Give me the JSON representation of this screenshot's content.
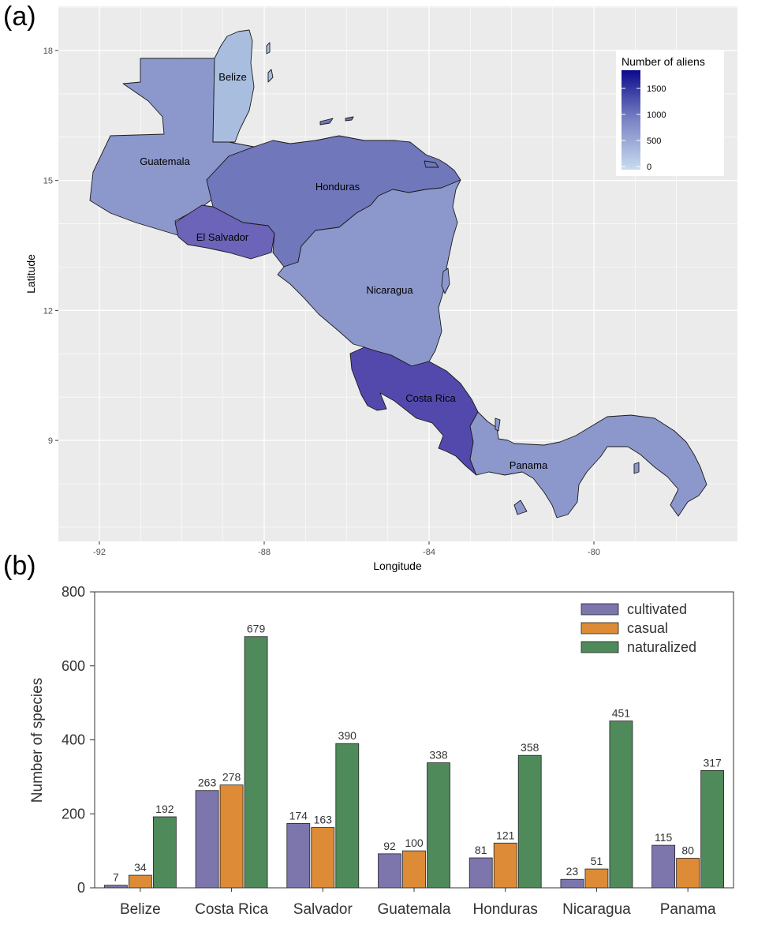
{
  "panel_a": {
    "label": "(a)",
    "xlabel": "Longitude",
    "ylabel": "Latitude",
    "x_ticks": [
      "-92",
      "-88",
      "-84",
      "-80"
    ],
    "y_ticks": [
      "18",
      "15",
      "12",
      "9"
    ],
    "legend_title": "Number of aliens",
    "legend_ticks": [
      "1500",
      "1000",
      "500",
      "0"
    ],
    "colors": {
      "low": "#c9dcef",
      "high": "#0a0a8c",
      "panel_bg": "#ebebeb",
      "grid": "#ffffff"
    },
    "countries": [
      {
        "name": "Belize",
        "fill": "#a9bedf"
      },
      {
        "name": "Guatemala",
        "fill": "#8c98cc"
      },
      {
        "name": "Honduras",
        "fill": "#7177bb"
      },
      {
        "name": "El Salvador",
        "fill": "#6b64b8"
      },
      {
        "name": "Nicaragua",
        "fill": "#8c98cc"
      },
      {
        "name": "Costa Rica",
        "fill": "#5349ad"
      },
      {
        "name": "Panama",
        "fill": "#8c98cc"
      }
    ]
  },
  "panel_b": {
    "label": "(b)",
    "chart_data": {
      "type": "bar",
      "title": "",
      "xlabel": "",
      "ylabel": "Number of species",
      "ylim": [
        0,
        800
      ],
      "yticks": [
        0,
        200,
        400,
        600,
        800
      ],
      "categories": [
        "Belize",
        "Costa Rica",
        "Salvador",
        "Guatemala",
        "Honduras",
        "Nicaragua",
        "Panama"
      ],
      "series": [
        {
          "name": "cultivated",
          "color": "#7c76ad",
          "values": [
            7,
            263,
            174,
            92,
            81,
            23,
            115
          ]
        },
        {
          "name": "casual",
          "color": "#dd8b36",
          "values": [
            34,
            278,
            163,
            100,
            121,
            51,
            80
          ]
        },
        {
          "name": "naturalized",
          "color": "#4f8a5b",
          "values": [
            192,
            679,
            390,
            338,
            358,
            451,
            317
          ]
        }
      ],
      "legend_position": "top-right",
      "grid": false
    }
  }
}
